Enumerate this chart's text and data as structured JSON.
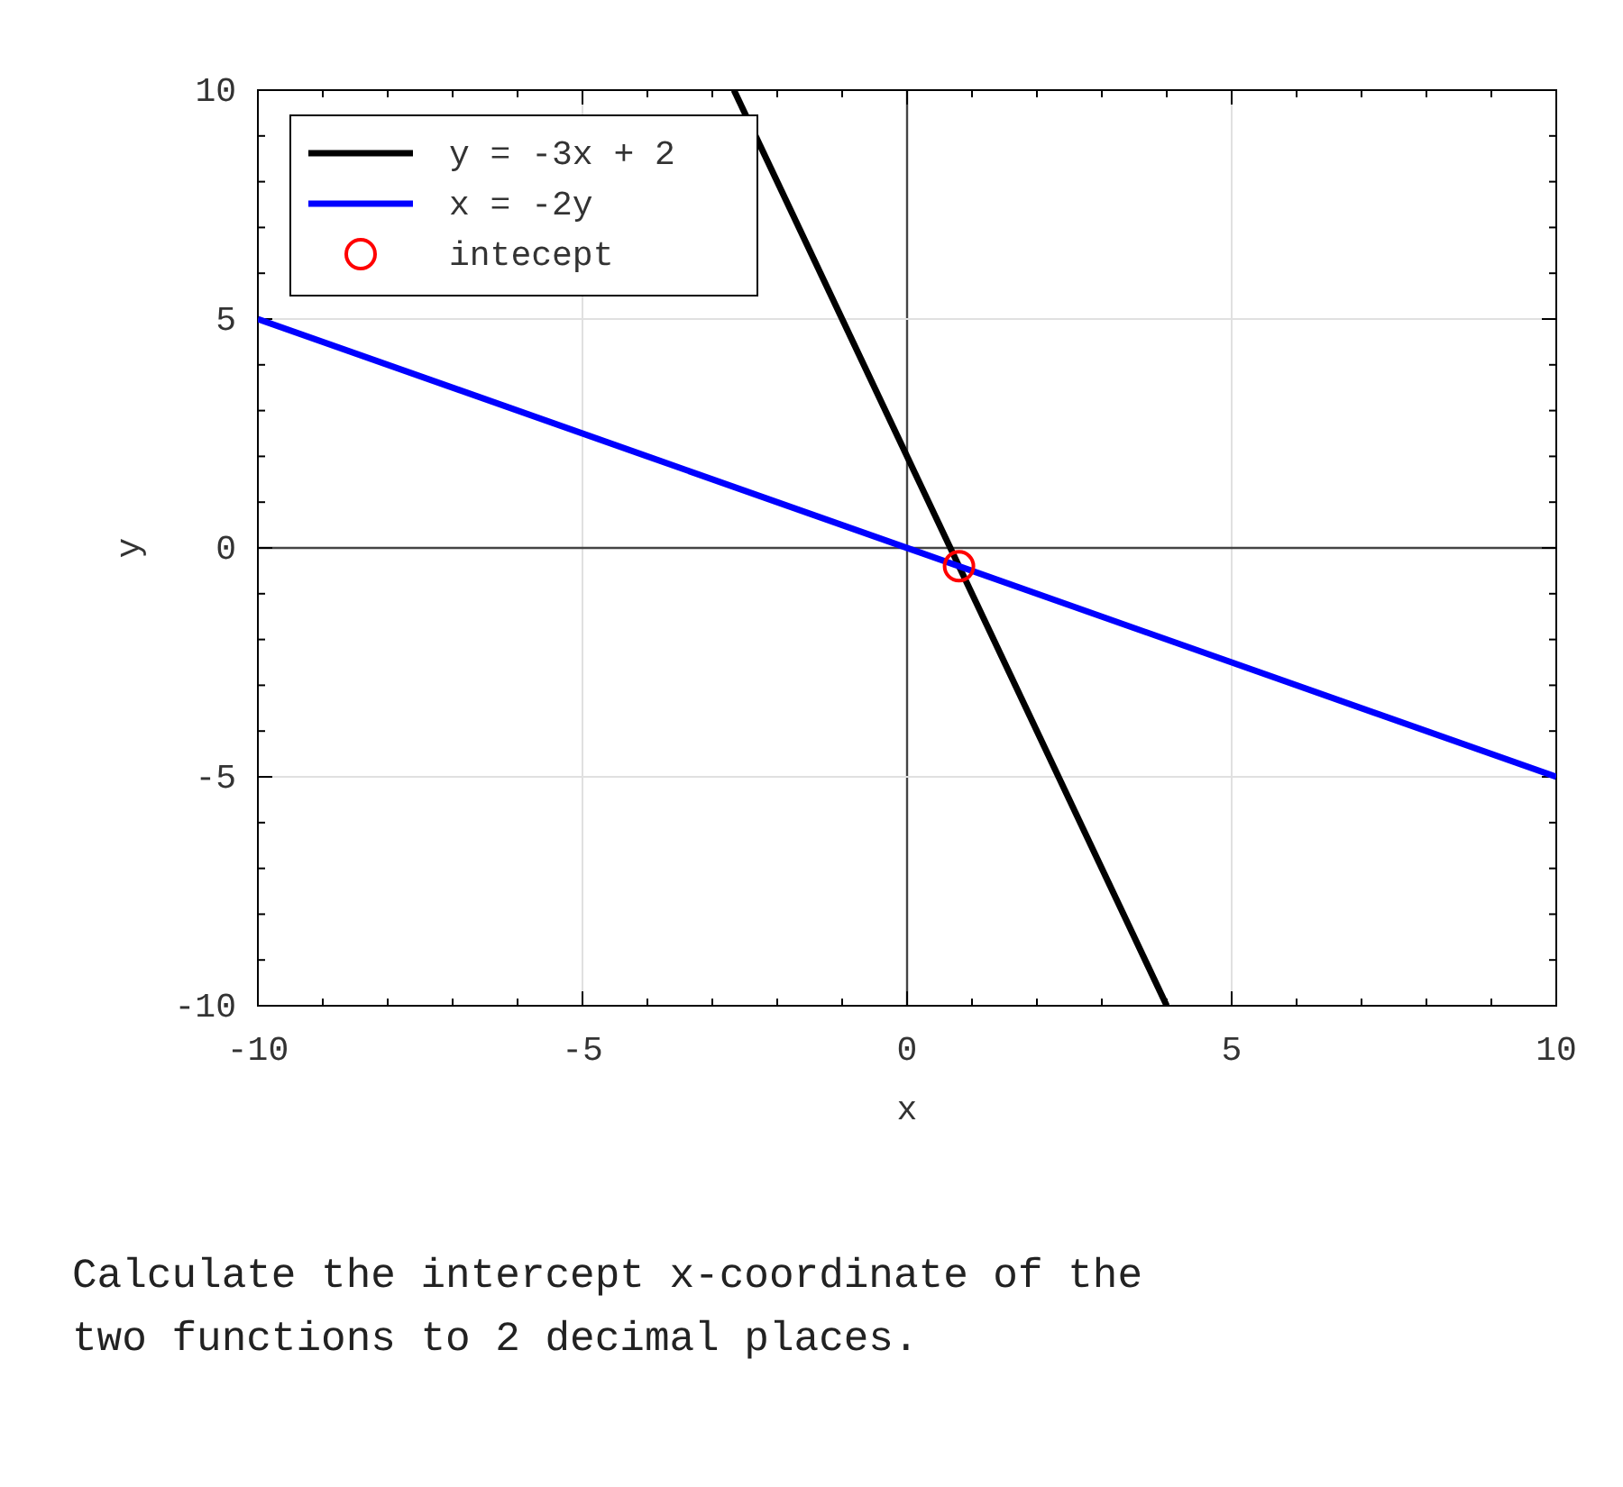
{
  "chart_data": {
    "type": "line",
    "xlabel": "x",
    "ylabel": "y",
    "xlim": [
      -10,
      10
    ],
    "ylim": [
      -10,
      10
    ],
    "xticks": [
      -10,
      {
        "value": -9,
        "label": null
      },
      {
        "value": -8,
        "label": null
      },
      {
        "value": -7,
        "label": null
      },
      {
        "value": -6,
        "label": null
      },
      -5,
      {
        "value": -4,
        "label": null
      },
      {
        "value": -3,
        "label": null
      },
      {
        "value": -2,
        "label": null
      },
      {
        "value": -1,
        "label": null
      },
      0,
      {
        "value": 1,
        "label": null
      },
      {
        "value": 2,
        "label": null
      },
      {
        "value": 3,
        "label": null
      },
      {
        "value": 4,
        "label": null
      },
      5,
      {
        "value": 6,
        "label": null
      },
      {
        "value": 7,
        "label": null
      },
      {
        "value": 8,
        "label": null
      },
      {
        "value": 9,
        "label": null
      },
      10
    ],
    "yticks": [
      -10,
      {
        "value": -9,
        "label": null
      },
      {
        "value": -8,
        "label": null
      },
      {
        "value": -7,
        "label": null
      },
      {
        "value": -6,
        "label": null
      },
      -5,
      {
        "value": -4,
        "label": null
      },
      {
        "value": -3,
        "label": null
      },
      {
        "value": -2,
        "label": null
      },
      {
        "value": -1,
        "label": null
      },
      0,
      {
        "value": 1,
        "label": null
      },
      {
        "value": 2,
        "label": null
      },
      {
        "value": 3,
        "label": null
      },
      {
        "value": 4,
        "label": null
      },
      5,
      {
        "value": 6,
        "label": null
      },
      {
        "value": 7,
        "label": null
      },
      {
        "value": 8,
        "label": null
      },
      {
        "value": 9,
        "label": null
      },
      10
    ],
    "grid": true,
    "legend": "top left",
    "series": [
      {
        "name": "y = -3x + 2",
        "color": "#000000",
        "x": [
          -2.667,
          4
        ],
        "values": [
          10,
          -10
        ],
        "marker": "none"
      },
      {
        "name": "x = -2y",
        "color": "#0000ff",
        "x": [
          -10,
          10
        ],
        "values": [
          5,
          -5
        ],
        "marker": "none"
      },
      {
        "name": "intecept",
        "color": "#ff0000",
        "type": "scatter",
        "x": [
          0.8
        ],
        "values": [
          -0.4
        ],
        "marker": "circle"
      }
    ],
    "annotations": [
      "Calculate the intercept x-coordinate of the two functions to 2 decimal places."
    ]
  }
}
